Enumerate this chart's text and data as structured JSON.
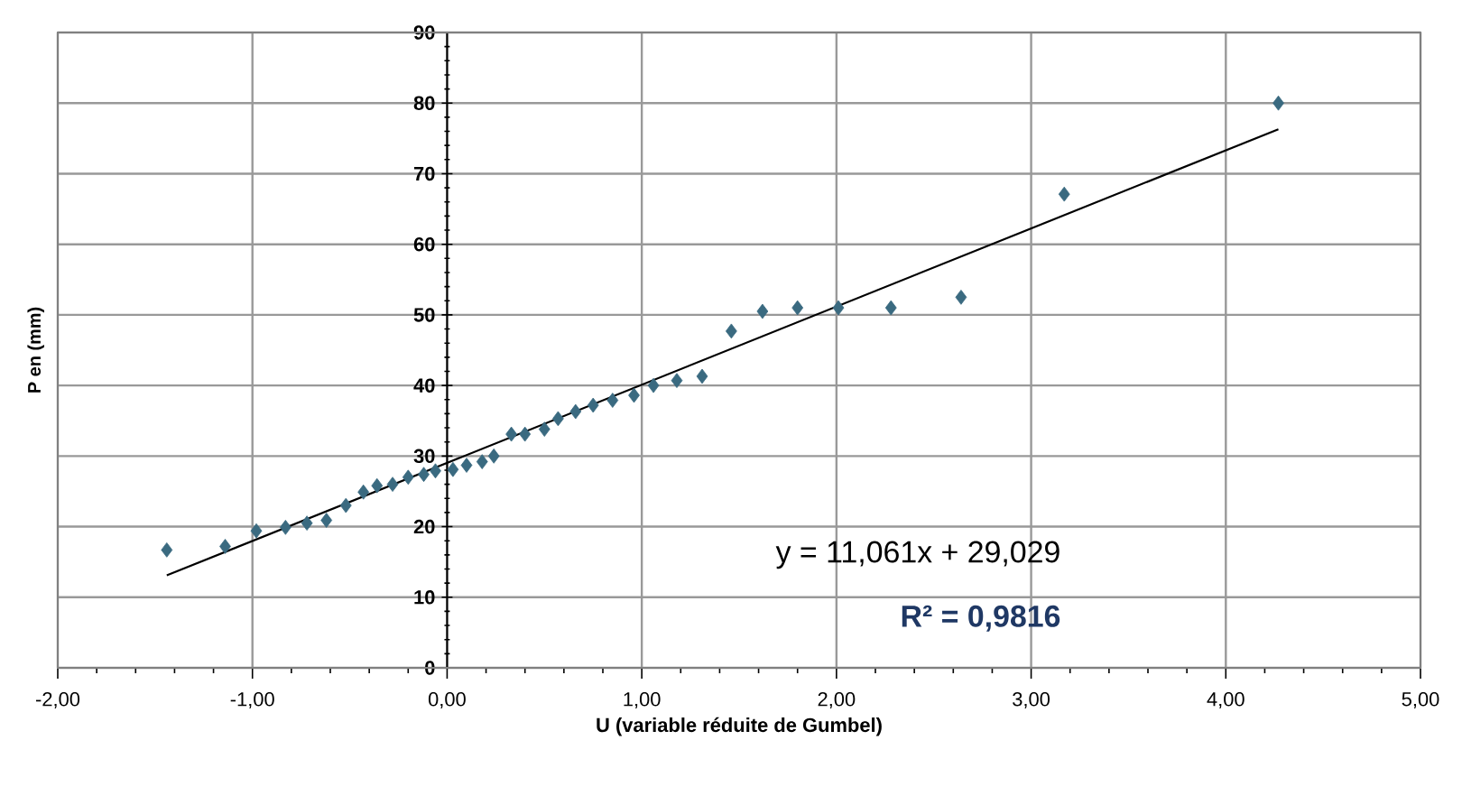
{
  "chart_data": {
    "type": "scatter",
    "xlabel": "U (variable réduite de Gumbel)",
    "ylabel": "P en (mm)",
    "xlim": [
      -2,
      5
    ],
    "ylim": [
      0,
      90
    ],
    "xticks": [
      {
        "value": -2,
        "label": "-2,00"
      },
      {
        "value": -1,
        "label": "-1,00"
      },
      {
        "value": 0,
        "label": "0,00"
      },
      {
        "value": 1,
        "label": "1,00"
      },
      {
        "value": 2,
        "label": "2,00"
      },
      {
        "value": 3,
        "label": "3,00"
      },
      {
        "value": 4,
        "label": "4,00"
      },
      {
        "value": 5,
        "label": "5,00"
      }
    ],
    "yticks": [
      0,
      10,
      20,
      30,
      40,
      50,
      60,
      70,
      80,
      90
    ],
    "grid": true,
    "series": [
      {
        "marker": "diamond",
        "color": "#3a6a80",
        "x": [
          -1.44,
          -1.14,
          -0.98,
          -0.83,
          -0.72,
          -0.62,
          -0.52,
          -0.43,
          -0.36,
          -0.28,
          -0.2,
          -0.12,
          -0.06,
          0.03,
          0.1,
          0.18,
          0.24,
          0.33,
          0.4,
          0.5,
          0.57,
          0.66,
          0.75,
          0.85,
          0.96,
          1.06,
          1.18,
          1.31,
          1.46,
          1.62,
          1.8,
          2.01,
          2.28,
          2.64,
          3.17,
          4.27
        ],
        "values": [
          16.7,
          17.2,
          19.4,
          19.9,
          20.5,
          20.9,
          23.0,
          24.9,
          25.8,
          26.0,
          27.0,
          27.4,
          27.9,
          28.1,
          28.7,
          29.2,
          30.0,
          33.1,
          33.1,
          33.8,
          35.3,
          36.3,
          37.2,
          37.9,
          38.6,
          40.0,
          40.7,
          41.3,
          47.7,
          50.5,
          51.0,
          51.0,
          51.0,
          52.5,
          67.1,
          80.0
        ]
      },
      {
        "type": "line",
        "marker": "none",
        "color": "#000000",
        "x": [
          -1.44,
          4.27
        ],
        "values": [
          13.1,
          76.3
        ]
      }
    ],
    "annotations": [
      "y = 11,061x + 29,029",
      "**R² = 0,9816**"
    ]
  }
}
